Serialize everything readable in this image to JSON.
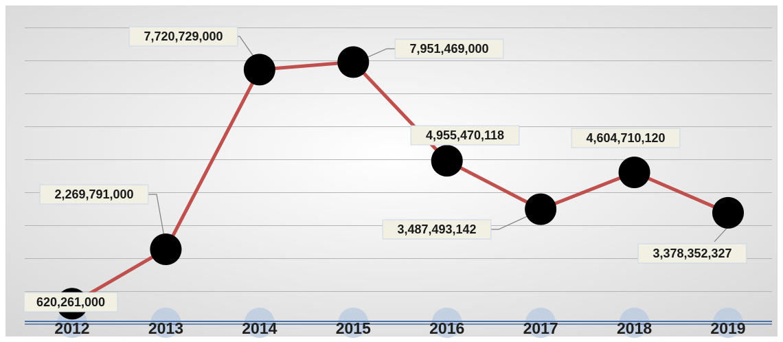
{
  "chart_data": {
    "type": "line",
    "title": "",
    "xlabel": "",
    "ylabel": "",
    "categories": [
      "2012",
      "2013",
      "2014",
      "2015",
      "2016",
      "2017",
      "2018",
      "2019"
    ],
    "series": [
      {
        "values": [
          620261000,
          2269791000,
          7720729000,
          7951469000,
          4955470118,
          3487493142,
          4604710120,
          3378352327
        ]
      }
    ],
    "data_labels": [
      "620,261,000",
      "2,269,791,000",
      "7,720,729,000",
      "7,951,469,000",
      "4,955,470,118",
      "3,487,493,142",
      "4,604,710,120",
      "3,378,352,327"
    ],
    "ylim": [
      0,
      9000000000
    ],
    "grid": true,
    "legend": "none",
    "colors": {
      "line": "#c0504d",
      "marker": "#000000",
      "label_fill": "#f2efe3",
      "label_border": "#c9d7e8",
      "axis": "#4a6fa5",
      "axis_bubble": "#b8c9e0",
      "background_center": "#ffffff",
      "background_edge": "#d6d6d6"
    }
  }
}
